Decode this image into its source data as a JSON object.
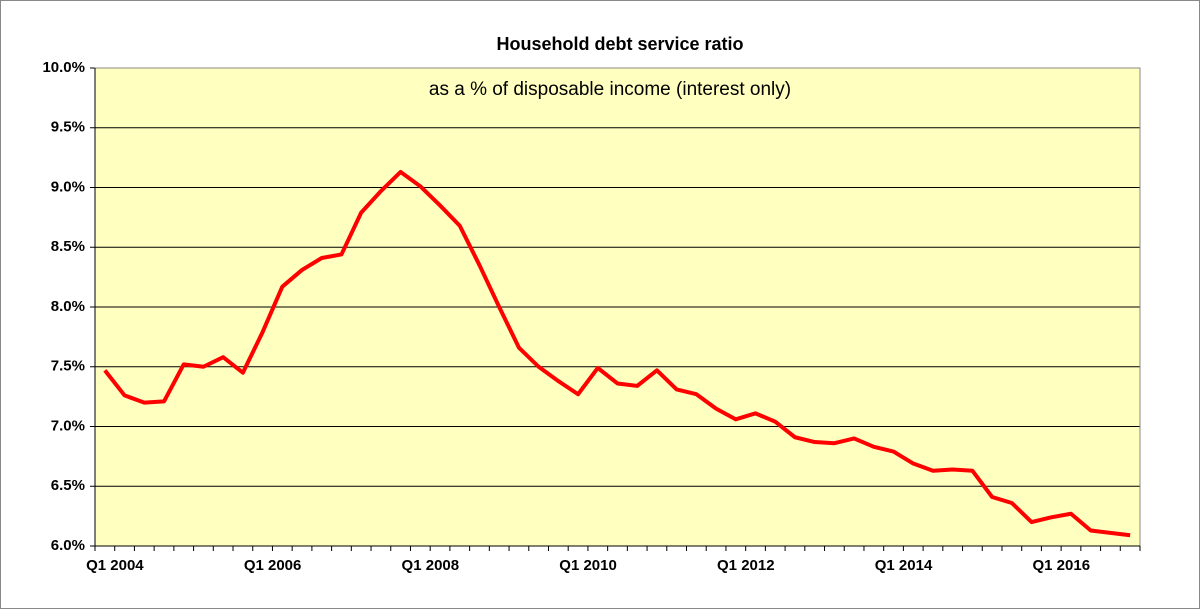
{
  "chart_data": {
    "type": "line",
    "title": "Household debt service ratio",
    "annotation": "as a % of disposable income (interest only)",
    "categories": [
      "Q1 2004",
      null,
      null,
      null,
      null,
      null,
      null,
      null,
      "Q1 2006",
      null,
      null,
      null,
      null,
      null,
      null,
      null,
      "Q1 2008",
      null,
      null,
      null,
      null,
      null,
      null,
      null,
      "Q1 2010",
      null,
      null,
      null,
      null,
      null,
      null,
      null,
      "Q1 2012",
      null,
      null,
      null,
      null,
      null,
      null,
      null,
      "Q1 2014",
      null,
      null,
      null,
      null,
      null,
      null,
      null,
      "Q1 2016",
      null,
      null,
      null,
      null
    ],
    "series": [
      {
        "color": "#ff0000",
        "values": [
          7.47,
          7.26,
          7.2,
          7.21,
          7.52,
          7.5,
          7.58,
          7.45,
          7.79,
          8.17,
          8.31,
          8.41,
          8.44,
          8.79,
          8.97,
          9.13,
          9.01,
          8.85,
          8.68,
          8.35,
          8.0,
          7.66,
          7.5,
          7.38,
          7.27,
          7.49,
          7.36,
          7.34,
          7.47,
          7.31,
          7.27,
          7.15,
          7.06,
          7.11,
          7.04,
          6.91,
          6.87,
          6.86,
          6.9,
          6.83,
          6.79,
          6.69,
          6.63,
          6.64,
          6.63,
          6.41,
          6.36,
          6.2,
          6.24,
          6.27,
          6.13,
          6.11,
          6.09
        ]
      }
    ],
    "ylim": [
      6,
      10
    ],
    "yticks": [
      {
        "value": 6,
        "label": "6.0%"
      },
      {
        "value": 6.5,
        "label": "6.5%"
      },
      {
        "value": 7,
        "label": "7.0%"
      },
      {
        "value": 7.5,
        "label": "7.5%"
      },
      {
        "value": 8,
        "label": "8.0%"
      },
      {
        "value": 8.5,
        "label": "8.5%"
      },
      {
        "value": 9,
        "label": "9.0%"
      },
      {
        "value": 9.5,
        "label": "9.5%"
      },
      {
        "value": 10,
        "label": "10.0%"
      }
    ],
    "grid": true,
    "plot_background": "#ffffc0"
  }
}
